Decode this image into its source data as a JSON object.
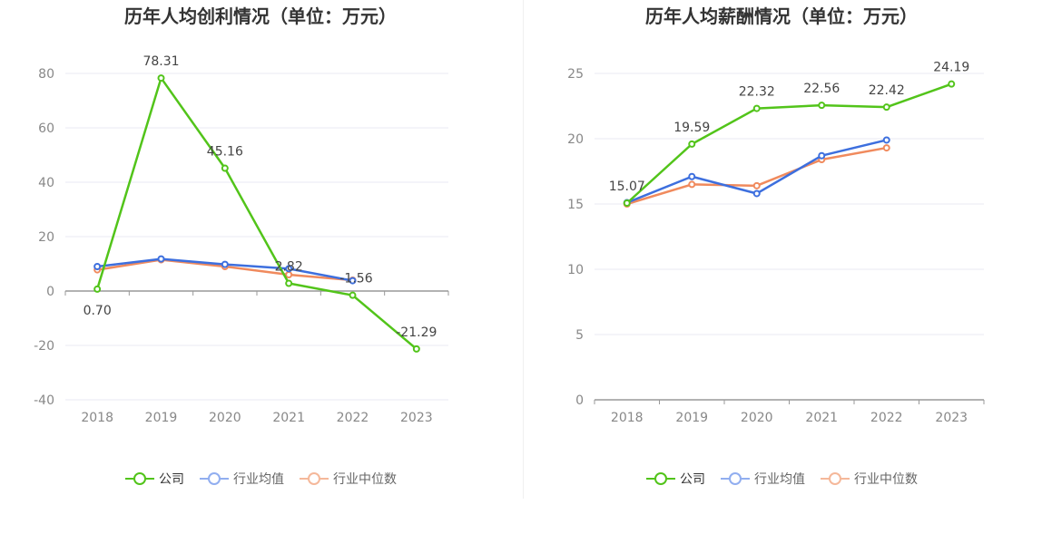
{
  "colors": {
    "company": "#52c41a",
    "avg": "#3d6fde",
    "median": "#f08a5d",
    "company_legend": "#52c41a",
    "avg_legend": "#91aef0",
    "median_legend": "#f5b89a"
  },
  "legend": {
    "company": "公司",
    "avg": "行业均值",
    "median": "行业中位数"
  },
  "chart_data": [
    {
      "type": "line",
      "title": "历年人均创利情况（单位：万元）",
      "categories": [
        "2018",
        "2019",
        "2020",
        "2021",
        "2022",
        "2023"
      ],
      "ylim": [
        -40,
        80
      ],
      "yticks": [
        80,
        60,
        40,
        20,
        0,
        -20,
        -40
      ],
      "series": [
        {
          "name": "公司",
          "values": [
            0.7,
            78.31,
            45.16,
            2.82,
            -1.56,
            -21.29
          ],
          "labels": [
            "0.70",
            "78.31",
            "45.16",
            "2.82",
            "-1.56",
            "-21.29"
          ]
        },
        {
          "name": "行业均值",
          "values": [
            9.0,
            11.8,
            9.8,
            8.2,
            3.8,
            null
          ]
        },
        {
          "name": "行业中位数",
          "values": [
            7.8,
            11.5,
            9.0,
            6.0,
            4.0,
            null
          ]
        }
      ]
    },
    {
      "type": "line",
      "title": "历年人均薪酬情况（单位：万元）",
      "categories": [
        "2018",
        "2019",
        "2020",
        "2021",
        "2022",
        "2023"
      ],
      "ylim": [
        0,
        25
      ],
      "yticks": [
        25,
        20,
        15,
        10,
        5,
        0
      ],
      "series": [
        {
          "name": "公司",
          "values": [
            15.07,
            19.59,
            22.32,
            22.56,
            22.42,
            24.19
          ],
          "labels": [
            "15.07",
            "19.59",
            "22.32",
            "22.56",
            "22.42",
            "24.19"
          ]
        },
        {
          "name": "行业均值",
          "values": [
            15.1,
            17.1,
            15.8,
            18.7,
            19.9,
            null
          ]
        },
        {
          "name": "行业中位数",
          "values": [
            15.0,
            16.5,
            16.4,
            18.4,
            19.3,
            null
          ]
        }
      ]
    }
  ]
}
